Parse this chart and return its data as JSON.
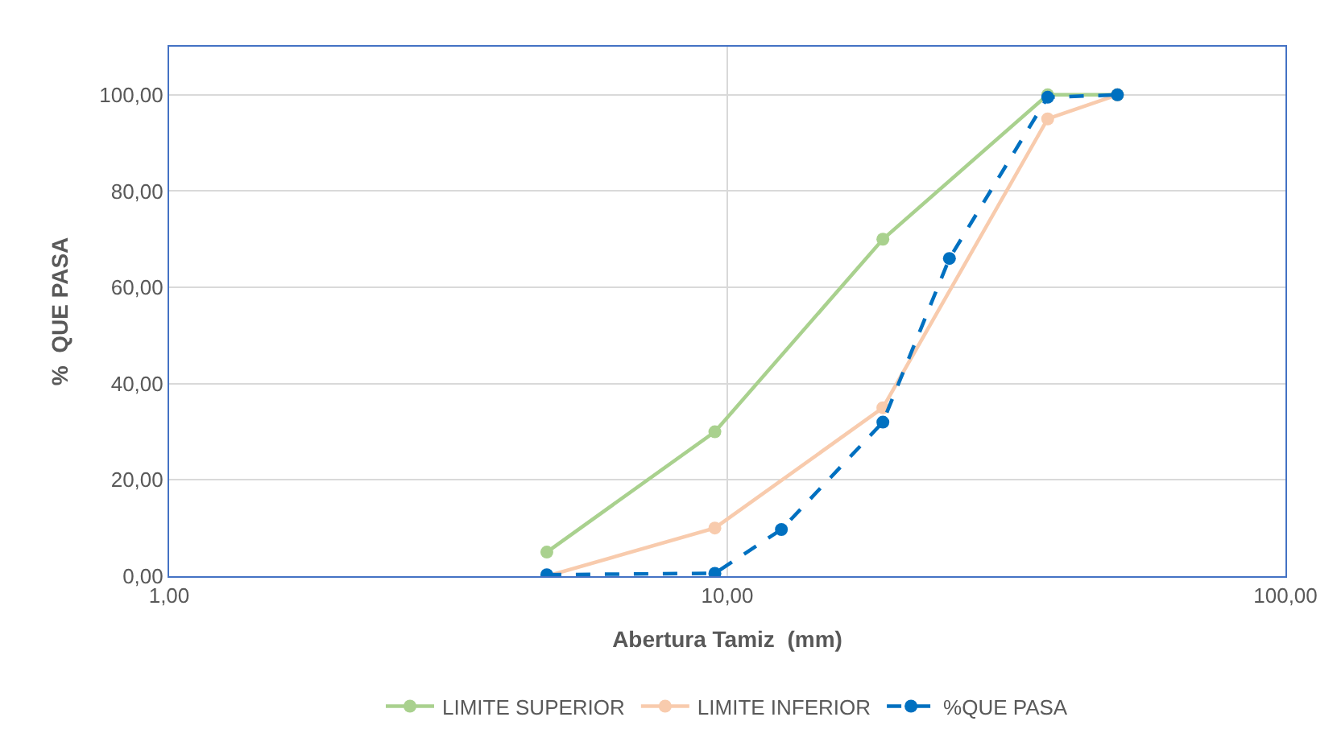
{
  "chart_data": {
    "type": "line",
    "xlabel": "Abertura Tamiz  (mm)",
    "ylabel": "%  QUE PASA",
    "log": "x",
    "xlim": [
      1,
      100
    ],
    "xticks": [
      {
        "value": 1,
        "label": "1,00"
      },
      {
        "value": 10,
        "label": "10,00"
      },
      {
        "value": 100,
        "label": "100,00"
      }
    ],
    "ylim": [
      0,
      110
    ],
    "yticks": [
      {
        "value": 0,
        "label": "0,00"
      },
      {
        "value": 20,
        "label": "20,00"
      },
      {
        "value": 40,
        "label": "40,00"
      },
      {
        "value": 60,
        "label": "60,00"
      },
      {
        "value": 80,
        "label": "80,00"
      },
      {
        "value": 100,
        "label": "100,00"
      }
    ],
    "grid": true,
    "legend": "bottom",
    "marker": "circle",
    "series": [
      {
        "name": "LIMITE SUPERIOR",
        "color": "#a9d18e",
        "line_style": "solid",
        "x": [
          4.75,
          9.5,
          19,
          37.5,
          50
        ],
        "values": [
          5,
          30,
          70,
          100,
          100
        ]
      },
      {
        "name": "LIMITE INFERIOR",
        "color": "#f8cbad",
        "line_style": "solid",
        "x": [
          4.75,
          9.5,
          19,
          37.5,
          50
        ],
        "values": [
          0,
          10,
          35,
          95,
          100
        ]
      },
      {
        "name": "%QUE PASA",
        "color": "#0070c0",
        "line_style": "dashed",
        "x": [
          4.75,
          9.5,
          12.5,
          19,
          25,
          37.5,
          50
        ],
        "values": [
          0.3,
          0.6,
          9.7,
          32,
          66,
          99.5,
          100
        ]
      }
    ]
  }
}
